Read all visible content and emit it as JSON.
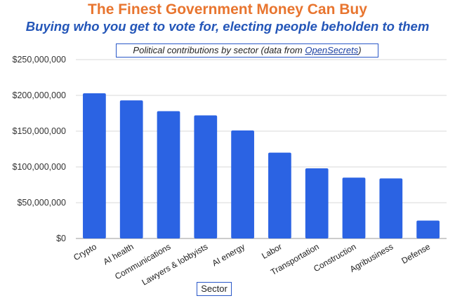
{
  "title": "The Finest Government Money Can Buy",
  "subtitle": "Buying who you get to vote for, electing people beholden to them",
  "caption": {
    "prefix": "Political contributions by sector (data from ",
    "link": "OpenSecrets",
    "suffix": ")"
  },
  "colors": {
    "bar": "#2b63e3",
    "title": "#e8752f",
    "subtitle": "#2456b8",
    "grid": "#d9d9d9"
  },
  "chart_data": {
    "type": "bar",
    "categories": [
      "Crypto",
      "AI health",
      "Communications",
      "Lawyers & lobbyists",
      "AI energy",
      "Labor",
      "Transportation",
      "Construction",
      "Agribusiness",
      "Defense"
    ],
    "values": [
      203000000,
      193000000,
      178000000,
      172000000,
      151000000,
      120000000,
      98000000,
      85000000,
      84000000,
      25000000
    ],
    "ylim": [
      0,
      250000000
    ],
    "yticks": [
      0,
      50000000,
      100000000,
      150000000,
      200000000,
      250000000
    ],
    "ytick_labels": [
      "$0",
      "$50,000,000",
      "$100,000,000",
      "$150,000,000",
      "$200,000,000",
      "$250,000,000"
    ],
    "xlabel": "Sector",
    "ylabel": "",
    "grid": true
  }
}
